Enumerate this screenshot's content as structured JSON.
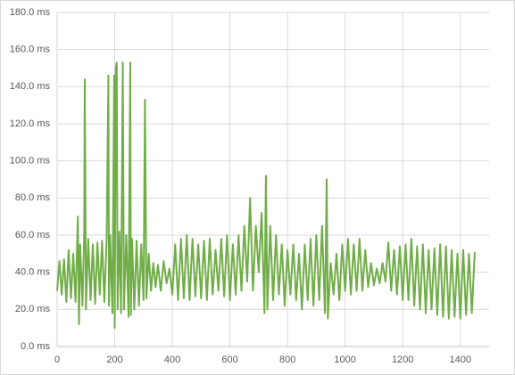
{
  "chart_data": {
    "type": "line",
    "x": [
      0,
      8,
      16,
      24,
      32,
      40,
      48,
      56,
      64,
      72,
      76,
      80,
      88,
      94,
      96,
      100,
      108,
      116,
      124,
      132,
      140,
      148,
      156,
      164,
      172,
      178,
      180,
      184,
      192,
      198,
      200,
      204,
      207,
      210,
      216,
      222,
      228,
      232,
      240,
      248,
      254,
      256,
      260,
      268,
      276,
      284,
      292,
      300,
      305,
      310,
      318,
      326,
      334,
      342,
      350,
      360,
      370,
      380,
      390,
      400,
      410,
      420,
      430,
      440,
      450,
      460,
      470,
      480,
      490,
      500,
      510,
      520,
      530,
      540,
      550,
      560,
      570,
      580,
      590,
      600,
      610,
      620,
      630,
      640,
      650,
      660,
      670,
      680,
      690,
      700,
      710,
      720,
      725,
      730,
      740,
      750,
      760,
      770,
      780,
      790,
      800,
      810,
      820,
      830,
      840,
      850,
      860,
      870,
      880,
      890,
      900,
      910,
      920,
      930,
      936,
      940,
      950,
      960,
      970,
      980,
      990,
      1000,
      1010,
      1020,
      1030,
      1040,
      1050,
      1060,
      1070,
      1080,
      1090,
      1100,
      1110,
      1120,
      1130,
      1140,
      1150,
      1160,
      1170,
      1180,
      1190,
      1200,
      1210,
      1220,
      1230,
      1240,
      1250,
      1260,
      1270,
      1280,
      1290,
      1300,
      1310,
      1320,
      1330,
      1340,
      1350,
      1360,
      1370,
      1380,
      1390,
      1400,
      1410,
      1420,
      1430,
      1440,
      1450
    ],
    "series": [
      {
        "color": "#70ad47",
        "values": [
          30,
          46,
          28,
          47,
          24,
          52,
          26,
          50,
          24,
          70,
          12,
          55,
          22,
          60,
          144,
          20,
          58,
          25,
          55,
          23,
          56,
          28,
          57,
          24,
          58,
          146,
          22,
          60,
          18,
          146,
          10,
          150,
          153,
          20,
          62,
          18,
          153,
          20,
          60,
          16,
          153,
          17,
          58,
          20,
          57,
          22,
          55,
          25,
          133,
          26,
          50,
          30,
          45,
          32,
          44,
          30,
          46,
          34,
          42,
          28,
          55,
          25,
          58,
          26,
          60,
          25,
          58,
          27,
          55,
          26,
          57,
          25,
          58,
          28,
          52,
          30,
          58,
          27,
          60,
          25,
          55,
          28,
          60,
          30,
          65,
          35,
          80,
          30,
          65,
          40,
          72,
          18,
          92,
          20,
          65,
          25,
          60,
          28,
          55,
          22,
          52,
          28,
          55,
          25,
          50,
          20,
          55,
          25,
          58,
          22,
          60,
          25,
          65,
          18,
          90,
          15,
          45,
          28,
          50,
          25,
          55,
          30,
          58,
          28,
          55,
          30,
          58,
          30,
          52,
          32,
          45,
          33,
          42,
          34,
          45,
          35,
          56,
          30,
          52,
          28,
          54,
          25,
          55,
          25,
          58,
          22,
          54,
          20,
          55,
          18,
          52,
          20,
          53,
          17,
          55,
          16,
          54,
          15,
          52,
          16,
          50,
          15,
          52,
          17,
          50,
          18,
          51
        ]
      }
    ],
    "xlim": [
      0,
      1500
    ],
    "ylim": [
      0,
      180
    ],
    "xticks": [
      0,
      200,
      400,
      600,
      800,
      1000,
      1200,
      1400
    ],
    "yticks": [
      {
        "value": 0,
        "label": "0.0 ms"
      },
      {
        "value": 20,
        "label": "20.0 ms"
      },
      {
        "value": 40,
        "label": "40.0 ms"
      },
      {
        "value": 60,
        "label": "60.0 ms"
      },
      {
        "value": 80,
        "label": "80.0 ms"
      },
      {
        "value": 100,
        "label": "100.0 ms"
      },
      {
        "value": 120,
        "label": "120.0 ms"
      },
      {
        "value": 140,
        "label": "140.0 ms"
      },
      {
        "value": 160,
        "label": "160.0 ms"
      },
      {
        "value": 180,
        "label": "180.0 ms"
      }
    ],
    "grid": true
  }
}
